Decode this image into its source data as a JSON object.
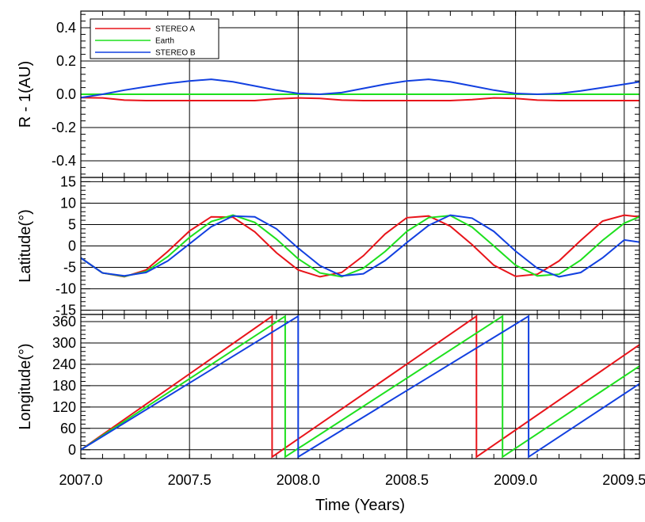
{
  "x_axis": {
    "label": "Time (Years)",
    "range": [
      2007.0,
      2009.57
    ],
    "ticks": [
      2007.0,
      2007.5,
      2008.0,
      2008.5,
      2009.0,
      2009.5
    ],
    "tick_labels": [
      "2007.0",
      "2007.5",
      "2008.0",
      "2008.5",
      "2009.0",
      "2009.5"
    ]
  },
  "colors": {
    "stereo_a": "#e8141a",
    "earth": "#1ee01e",
    "stereo_b": "#1240e0"
  },
  "chart_data": [
    {
      "type": "line",
      "panel": "distance",
      "ylabel": "R - 1(AU)",
      "ylim": [
        -0.5,
        0.5
      ],
      "yticks": [
        -0.4,
        -0.2,
        0.0,
        0.2,
        0.4
      ],
      "ytick_labels": [
        "-0.4",
        "-0.2",
        "0.0",
        "0.2",
        "0.4"
      ],
      "grid": true,
      "legend": {
        "placement": "top-left",
        "entries": [
          "STEREO A",
          "Earth",
          "STEREO B"
        ]
      },
      "series": [
        {
          "name": "STEREO A",
          "color": "#e8141a",
          "x": [
            2007.0,
            2007.1,
            2007.2,
            2007.3,
            2007.4,
            2007.5,
            2007.6,
            2007.7,
            2007.8,
            2007.9,
            2008.0,
            2008.1,
            2008.2,
            2008.3,
            2008.4,
            2008.5,
            2008.6,
            2008.7,
            2008.8,
            2008.9,
            2009.0,
            2009.1,
            2009.2,
            2009.3,
            2009.4,
            2009.5,
            2009.57
          ],
          "y": [
            -0.02,
            -0.022,
            -0.035,
            -0.038,
            -0.038,
            -0.038,
            -0.038,
            -0.038,
            -0.038,
            -0.028,
            -0.022,
            -0.025,
            -0.035,
            -0.038,
            -0.038,
            -0.038,
            -0.038,
            -0.038,
            -0.032,
            -0.022,
            -0.025,
            -0.035,
            -0.038,
            -0.038,
            -0.038,
            -0.038,
            -0.038
          ]
        },
        {
          "name": "Earth",
          "color": "#1ee01e",
          "x": [
            2007.0,
            2009.57
          ],
          "y": [
            0.0,
            0.0
          ]
        },
        {
          "name": "STEREO B",
          "color": "#1240e0",
          "x": [
            2007.0,
            2007.1,
            2007.2,
            2007.3,
            2007.4,
            2007.5,
            2007.6,
            2007.7,
            2007.8,
            2007.9,
            2008.0,
            2008.1,
            2008.2,
            2008.3,
            2008.4,
            2008.5,
            2008.6,
            2008.7,
            2008.8,
            2008.9,
            2009.0,
            2009.1,
            2009.2,
            2009.3,
            2009.4,
            2009.5,
            2009.57
          ],
          "y": [
            -0.02,
            0.0,
            0.025,
            0.045,
            0.065,
            0.08,
            0.09,
            0.075,
            0.05,
            0.025,
            0.005,
            0.0,
            0.01,
            0.035,
            0.06,
            0.08,
            0.09,
            0.075,
            0.05,
            0.025,
            0.005,
            0.0,
            0.005,
            0.02,
            0.04,
            0.06,
            0.075
          ]
        }
      ]
    },
    {
      "type": "line",
      "panel": "latitude",
      "ylabel": "Latitude(°)",
      "ylim": [
        -16,
        16
      ],
      "yticks": [
        -15,
        -10,
        -5,
        0,
        5,
        10,
        15
      ],
      "ytick_labels": [
        "-15",
        "-10",
        "-5",
        "0",
        "5",
        "10",
        "15"
      ],
      "grid": true,
      "series": [
        {
          "name": "STEREO A",
          "color": "#e8141a",
          "x": [
            2007.0,
            2007.1,
            2007.2,
            2007.3,
            2007.4,
            2007.5,
            2007.6,
            2007.7,
            2007.8,
            2007.9,
            2008.0,
            2008.1,
            2008.2,
            2008.3,
            2008.4,
            2008.5,
            2008.6,
            2008.7,
            2008.8,
            2008.9,
            2009.0,
            2009.1,
            2009.2,
            2009.3,
            2009.4,
            2009.5,
            2009.57
          ],
          "y": [
            -2.8,
            -6.3,
            -7.2,
            -5.6,
            -1.3,
            3.5,
            6.8,
            6.7,
            3.3,
            -1.6,
            -5.6,
            -7.2,
            -6.2,
            -2.3,
            2.8,
            6.6,
            7.0,
            4.6,
            0.3,
            -4.5,
            -7.1,
            -6.6,
            -3.5,
            1.3,
            5.8,
            7.2,
            6.8
          ]
        },
        {
          "name": "Earth",
          "color": "#1ee01e",
          "x": [
            2007.0,
            2007.1,
            2007.2,
            2007.3,
            2007.4,
            2007.5,
            2007.6,
            2007.7,
            2007.8,
            2007.9,
            2008.0,
            2008.1,
            2008.2,
            2008.3,
            2008.4,
            2008.5,
            2008.6,
            2008.7,
            2008.8,
            2008.9,
            2009.0,
            2009.1,
            2009.2,
            2009.3,
            2009.4,
            2009.5,
            2009.57
          ],
          "y": [
            -2.8,
            -6.3,
            -7.1,
            -6.0,
            -2.5,
            2.0,
            5.7,
            7.2,
            5.5,
            1.6,
            -3.0,
            -6.3,
            -7.2,
            -5.2,
            -1.3,
            3.4,
            6.6,
            7.1,
            4.4,
            0.0,
            -4.5,
            -7.0,
            -6.6,
            -3.3,
            1.3,
            5.3,
            6.8
          ]
        },
        {
          "name": "STEREO B",
          "color": "#1240e0",
          "x": [
            2007.0,
            2007.1,
            2007.2,
            2007.3,
            2007.4,
            2007.5,
            2007.6,
            2007.7,
            2007.8,
            2007.9,
            2008.0,
            2008.1,
            2008.2,
            2008.3,
            2008.4,
            2008.5,
            2008.6,
            2008.7,
            2008.8,
            2008.9,
            2009.0,
            2009.1,
            2009.2,
            2009.3,
            2009.4,
            2009.5,
            2009.57
          ],
          "y": [
            -2.8,
            -6.3,
            -7.0,
            -6.2,
            -3.5,
            0.5,
            4.5,
            7.0,
            6.8,
            4.0,
            -0.5,
            -4.6,
            -7.0,
            -6.5,
            -3.4,
            0.8,
            4.8,
            7.2,
            6.5,
            3.4,
            -1.2,
            -5.2,
            -7.2,
            -6.2,
            -2.8,
            1.4,
            0.9
          ]
        }
      ]
    },
    {
      "type": "line",
      "panel": "longitude",
      "ylabel": "Longitude(°)",
      "ylim": [
        -25,
        380
      ],
      "yticks": [
        0,
        60,
        120,
        180,
        240,
        300,
        360
      ],
      "ytick_labels": [
        "0",
        "60",
        "120",
        "180",
        "240",
        "300",
        "360"
      ],
      "grid": true,
      "series": [
        {
          "name": "STEREO A",
          "color": "#e8141a",
          "x": [
            2007.0,
            2007.88,
            2007.88,
            2008.82,
            2008.82,
            2009.57
          ],
          "y": [
            0,
            375,
            -20,
            375,
            -20,
            295
          ]
        },
        {
          "name": "Earth",
          "color": "#1ee01e",
          "x": [
            2007.0,
            2007.94,
            2007.94,
            2008.94,
            2008.94,
            2009.57
          ],
          "y": [
            0,
            375,
            -20,
            375,
            -20,
            235
          ]
        },
        {
          "name": "STEREO B",
          "color": "#1240e0",
          "x": [
            2007.0,
            2008.0,
            2008.0,
            2009.06,
            2009.06,
            2009.57
          ],
          "y": [
            0,
            375,
            -20,
            375,
            -20,
            185
          ]
        }
      ]
    }
  ]
}
